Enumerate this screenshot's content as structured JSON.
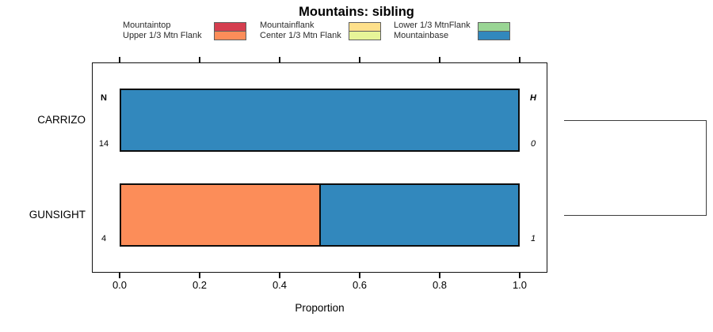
{
  "title": "Mountains: sibling",
  "legend": {
    "columns": [
      {
        "items": [
          {
            "label": "Mountaintop",
            "color": "#d53e4f"
          },
          {
            "label": "Upper 1/3 Mtn Flank",
            "color": "#fc8d59"
          }
        ]
      },
      {
        "items": [
          {
            "label": "Mountainflank",
            "color": "#fee08b"
          },
          {
            "label": "Center 1/3 Mtn Flank",
            "color": "#e6f598"
          }
        ]
      },
      {
        "items": [
          {
            "label": "Lower 1/3 MtnFlank",
            "color": "#99d594"
          },
          {
            "label": "Mountainbase",
            "color": "#3288bd"
          }
        ]
      }
    ]
  },
  "axis": {
    "xlabel": "Proportion",
    "tick_labels": [
      "0.0",
      "0.2",
      "0.4",
      "0.6",
      "0.8",
      "1.0"
    ],
    "tick_values": [
      0,
      0.2,
      0.4,
      0.6,
      0.8,
      1.0
    ]
  },
  "annotation_headers": {
    "left": "N",
    "right": "H"
  },
  "chart_data": {
    "type": "bar",
    "orientation": "horizontal",
    "stacked": true,
    "title": "Mountains: sibling",
    "xlabel": "Proportion",
    "xlim": [
      0,
      1
    ],
    "xticks": [
      0,
      0.2,
      0.4,
      0.6,
      0.8,
      1.0
    ],
    "legend_position": "top",
    "grid": false,
    "series_names": [
      "Mountaintop",
      "Upper 1/3 Mtn Flank",
      "Mountainflank",
      "Center 1/3 Mtn Flank",
      "Lower 1/3 MtnFlank",
      "Mountainbase"
    ],
    "series_colors": [
      "#d53e4f",
      "#fc8d59",
      "#fee08b",
      "#e6f598",
      "#99d594",
      "#3288bd"
    ],
    "column_headers": {
      "left": "N",
      "right": "H"
    },
    "rows": [
      {
        "category": "CARRIZO",
        "n": "14",
        "h": "0",
        "segments": [
          {
            "name": "Mountainbase",
            "value": 1.0,
            "color": "#3288bd"
          }
        ]
      },
      {
        "category": "GUNSIGHT",
        "n": "4",
        "h": "1",
        "segments": [
          {
            "name": "Upper 1/3 Mtn Flank",
            "value": 0.5,
            "color": "#fc8d59"
          },
          {
            "name": "Mountainbase",
            "value": 0.5,
            "color": "#3288bd"
          }
        ]
      }
    ],
    "right_dendrogram": {
      "joins": [
        "CARRIZO",
        "GUNSIGHT"
      ]
    }
  }
}
